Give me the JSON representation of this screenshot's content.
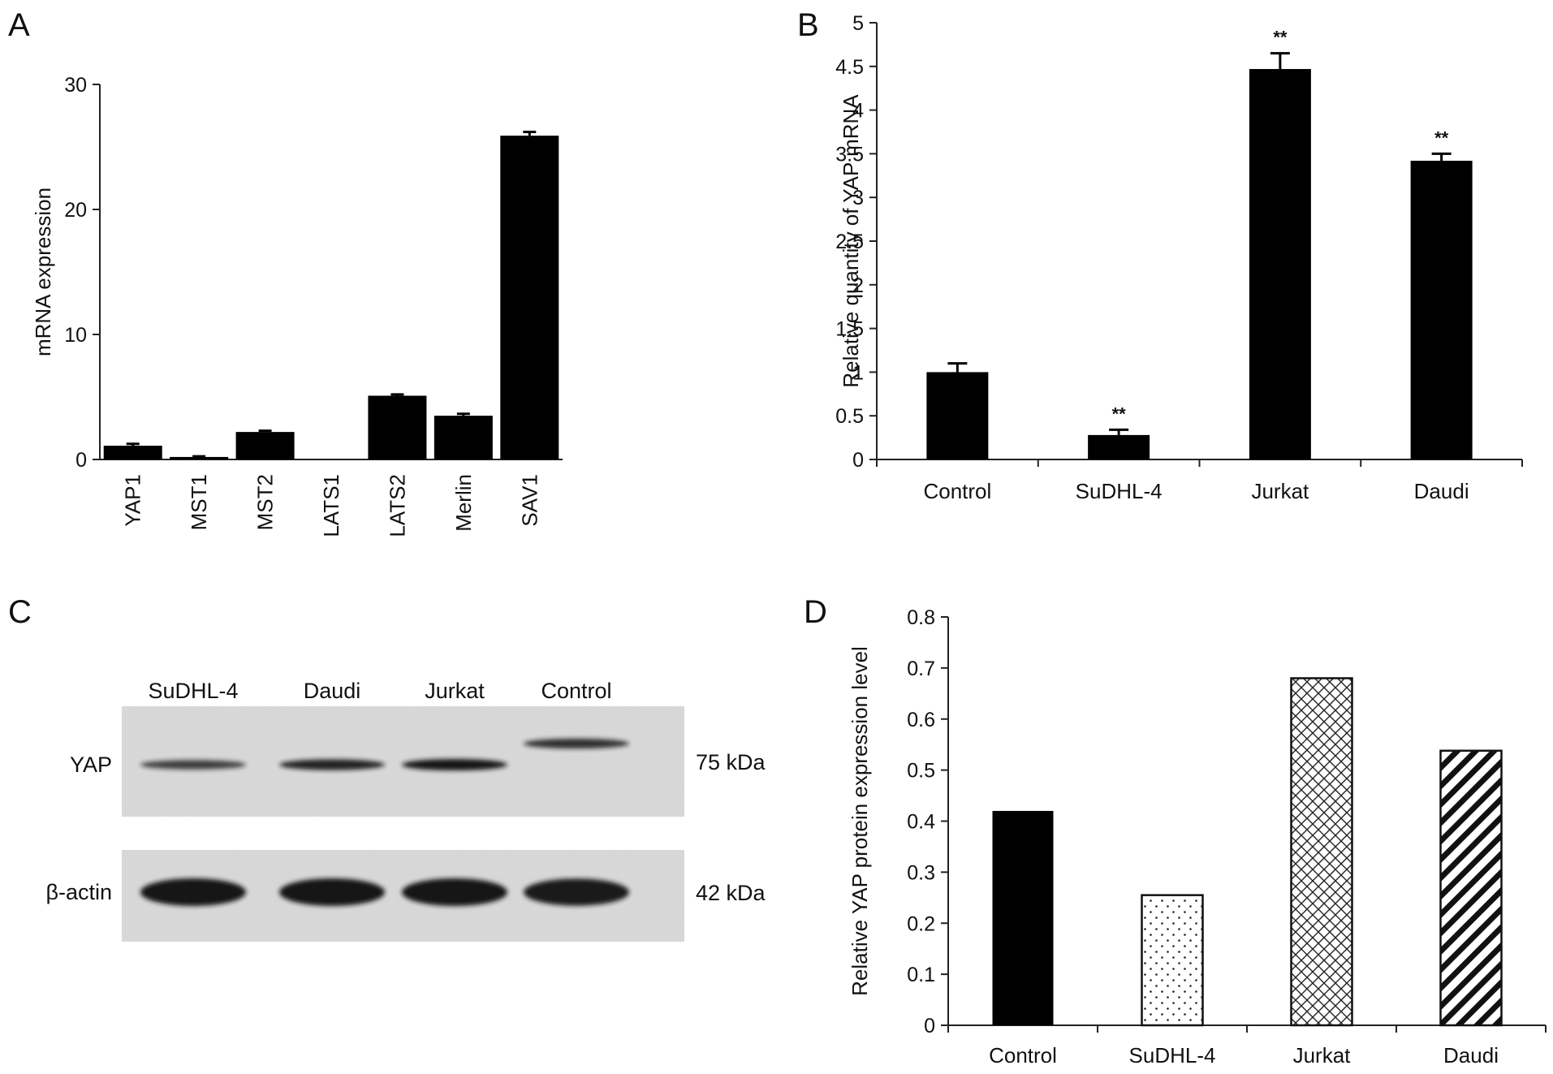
{
  "panels": {
    "a": {
      "letter": "A"
    },
    "b": {
      "letter": "B"
    },
    "c": {
      "letter": "C"
    },
    "d": {
      "letter": "D"
    }
  },
  "colors": {
    "bar": "#000000",
    "blot_bg": "#d9d9d9",
    "band": "#141414"
  },
  "chart_data": [
    {
      "id": "a",
      "type": "bar",
      "categories": [
        "YAP1",
        "MST1",
        "MST2",
        "LATS1",
        "LATS2",
        "Merlin",
        "SAV1"
      ],
      "values": [
        1.1,
        0.2,
        2.2,
        0.0,
        5.1,
        3.5,
        25.9
      ],
      "errors": [
        0.15,
        0.05,
        0.1,
        0.0,
        0.1,
        0.15,
        0.3
      ],
      "ylabel": "mRNA expression",
      "ylim": [
        0,
        30
      ],
      "yticks": [
        0,
        10,
        20,
        30
      ],
      "grid": false,
      "tick_labels_rotated": true
    },
    {
      "id": "b",
      "type": "bar",
      "categories": [
        "Control",
        "SuDHL-4",
        "Jurkat",
        "Daudi"
      ],
      "values": [
        1.0,
        0.28,
        4.47,
        3.42
      ],
      "errors": [
        0.1,
        0.06,
        0.18,
        0.08
      ],
      "significance": [
        "",
        "**",
        "**",
        "**"
      ],
      "ylabel": "Relative quantity of YAP mRNA",
      "ylim": [
        0,
        5
      ],
      "yticks": [
        "0",
        "0.5",
        "1",
        "1.5",
        "2",
        "2.5",
        "3",
        "3.5",
        "4",
        "4.5",
        "5"
      ],
      "grid": false
    },
    {
      "id": "d",
      "type": "bar",
      "categories": [
        "Control",
        "SuDHL-4",
        "Jurkat",
        "Daudi"
      ],
      "values": [
        0.42,
        0.255,
        0.68,
        0.538
      ],
      "patterns": [
        "solid",
        "dots",
        "crosshatch",
        "diagonal"
      ],
      "ylabel": "Relative YAP protein expression level",
      "ylim": [
        0,
        0.8
      ],
      "yticks": [
        "0",
        "0.1",
        "0.2",
        "0.3",
        "0.4",
        "0.5",
        "0.6",
        "0.7",
        "0.8"
      ],
      "grid": false
    }
  ],
  "blot": {
    "lanes": [
      "SuDHL-4",
      "Daudi",
      "Jurkat",
      "Control"
    ],
    "rows": [
      {
        "label": "YAP",
        "size": "75 kDa",
        "intensity": [
          0.55,
          0.85,
          1.0,
          0.7
        ]
      },
      {
        "label": "β-actin",
        "size": "42 kDa",
        "intensity": [
          1.0,
          1.0,
          1.0,
          0.95
        ]
      }
    ]
  }
}
